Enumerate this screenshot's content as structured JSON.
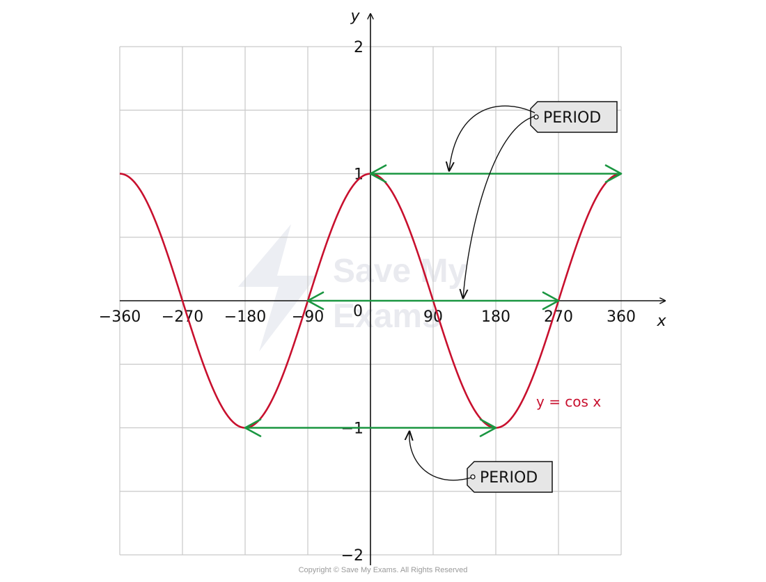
{
  "chart_data": {
    "type": "line",
    "function": "cos",
    "x_ticks": [
      -360,
      -270,
      -180,
      -90,
      90,
      180,
      270,
      360
    ],
    "x_tick_labels": [
      "−360",
      "−270",
      "−180",
      "−90",
      "90",
      "180",
      "270",
      "360"
    ],
    "origin_label": "0",
    "y_ticks": [
      2,
      1,
      -1,
      -2
    ],
    "y_tick_labels": [
      "2",
      "1",
      "−1",
      "−2"
    ],
    "xlim": [
      -360,
      360
    ],
    "ylim": [
      -2,
      2
    ],
    "xlabel": "x",
    "ylabel": "y",
    "grid": true,
    "series": [
      {
        "name": "y = cos x",
        "color": "#c8102e",
        "x_range": [
          -360,
          360
        ]
      }
    ],
    "period_arrows": [
      {
        "from": 0,
        "to": 360,
        "y": 1
      },
      {
        "from": -90,
        "to": 270,
        "y": 0
      },
      {
        "from": -180,
        "to": 180,
        "y": -1
      }
    ],
    "annotations": [
      {
        "text": "PERIOD"
      },
      {
        "text": "PERIOD"
      }
    ],
    "colors": {
      "curve": "#c8102e",
      "period": "#1a9641",
      "grid": "#c9c9c9",
      "axis": "#111111"
    }
  },
  "watermark": {
    "line1": "Save My",
    "line2": "Exams"
  },
  "copyright": "Copyright © Save My Exams. All Rights Reserved"
}
